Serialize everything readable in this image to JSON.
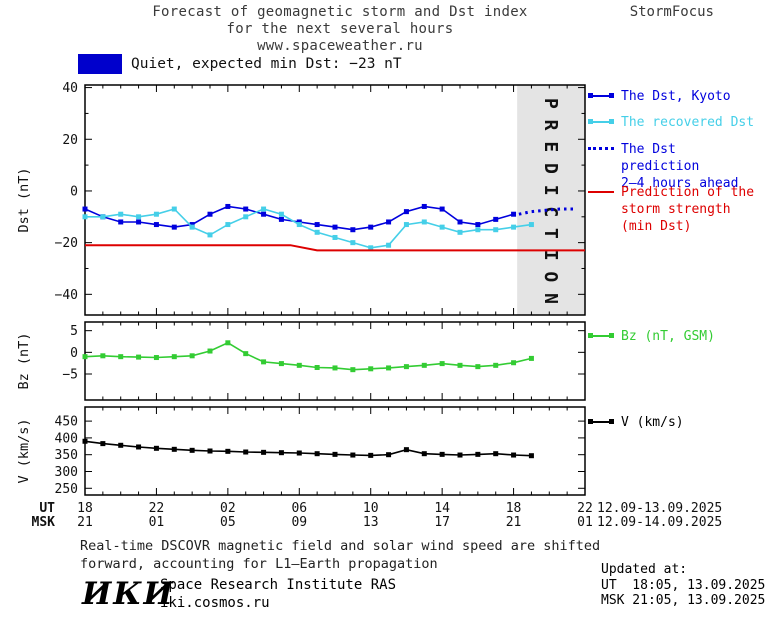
{
  "header": {
    "title_line1": "Forecast of geomagnetic storm and Dst index",
    "title_line2": "for the next several hours",
    "title_line3": "www.spaceweather.ru",
    "brand": "StormFocus"
  },
  "status": {
    "label": "Quiet, expected min Dst: −23 nT"
  },
  "colors": {
    "dst": "#0000dd",
    "recovered": "#45cfe8",
    "prediction": "#0000dd",
    "min_dst": "#dd0000",
    "bz": "#33cc33",
    "v": "#000000",
    "band": "#e4e4e4",
    "band_text": "#b4b4b4",
    "swatch": "#0000cc"
  },
  "legend": {
    "dst_kyoto": "The Dst, Kyoto",
    "recovered": "The recovered Dst",
    "prediction_line1": "The Dst prediction",
    "prediction_line2": "2–4 hours ahead",
    "min_dst_line1": "Prediction of the",
    "min_dst_line2": "storm strength",
    "min_dst_line3": "(min Dst)",
    "bz": "Bz (nT, GSM)",
    "v": "V (km/s)"
  },
  "axis": {
    "ut_label": "UT",
    "msk_label": "MSK",
    "ut_ticks": [
      "18",
      "22",
      "02",
      "06",
      "10",
      "14",
      "18",
      "22"
    ],
    "msk_ticks": [
      "21",
      "01",
      "05",
      "09",
      "13",
      "17",
      "21",
      "01"
    ],
    "ut_dates": "12.09-13.09.2025",
    "msk_dates": "12.09-14.09.2025"
  },
  "footnote": {
    "line1": "Real-time DSCOVR magnetic field and solar wind speed are shifted",
    "line2": "forward, accounting for L1–Earth propagation"
  },
  "footer": {
    "logo": "ИКИ",
    "institute": "Space Research Institute RAS",
    "site": "iki.cosmos.ru",
    "updated_label": "Updated at:",
    "updated_ut": "UT  18:05, 13.09.2025",
    "updated_msk": "MSK 21:05, 13.09.2025"
  },
  "chart_data": [
    {
      "type": "line",
      "ylabel": "Dst (nT)",
      "ylim": [
        -48,
        41
      ],
      "yticks": [
        40,
        20,
        0,
        -20,
        -40
      ],
      "yminor": [
        30,
        10,
        -10,
        -30
      ],
      "xlim": [
        0,
        28
      ],
      "xtick_step": 4,
      "x_note": "hours since 18:00 UT 12.09.2025",
      "band": {
        "start": 24.2,
        "label": "P R E D I C T I O N"
      },
      "series": [
        {
          "name": "The Dst, Kyoto",
          "color": "#0000dd",
          "marker": "square",
          "x": [
            0,
            1,
            2,
            3,
            4,
            5,
            6,
            7,
            8,
            9,
            10,
            11,
            12,
            13,
            14,
            15,
            16,
            17,
            18,
            19,
            20,
            21,
            22,
            23,
            24
          ],
          "y": [
            -7,
            -10,
            -12,
            -12,
            -13,
            -14,
            -13,
            -9,
            -6,
            -7,
            -9,
            -11,
            -12,
            -13,
            -14,
            -15,
            -14,
            -12,
            -8,
            -6,
            -7,
            -12,
            -13,
            -11,
            -9
          ]
        },
        {
          "name": "The recovered Dst",
          "color": "#45cfe8",
          "marker": "square",
          "x": [
            0,
            1,
            2,
            3,
            4,
            5,
            6,
            7,
            8,
            9,
            10,
            11,
            12,
            13,
            14,
            15,
            16,
            17,
            18,
            19,
            20,
            21,
            22,
            23,
            24,
            25
          ],
          "y": [
            -10,
            -10,
            -9,
            -10,
            -9,
            -7,
            -14,
            -17,
            -13,
            -10,
            -7,
            -9,
            -13,
            -16,
            -18,
            -20,
            -22,
            -21,
            -13,
            -12,
            -14,
            -16,
            -15,
            -15,
            -14,
            -13
          ]
        },
        {
          "name": "The Dst prediction 2–4 hours ahead",
          "color": "#0000dd",
          "style": "dotted",
          "x": [
            24.3,
            25.0,
            25.8,
            26.6,
            27.4
          ],
          "y": [
            -9,
            -8,
            -7.5,
            -7,
            -7
          ]
        },
        {
          "name": "Prediction of the storm strength (min Dst)",
          "color": "#dd0000",
          "width": 2,
          "x": [
            0,
            11.5,
            13,
            28
          ],
          "y": [
            -21,
            -21,
            -23,
            -23
          ]
        }
      ]
    },
    {
      "type": "line",
      "ylabel": "Bz (nT)",
      "ylim": [
        -11,
        7
      ],
      "yticks": [
        5,
        0,
        -5
      ],
      "xlim": [
        0,
        28
      ],
      "xtick_step": 4,
      "series": [
        {
          "name": "Bz (nT, GSM)",
          "color": "#33cc33",
          "marker": "square",
          "x": [
            0,
            1,
            2,
            3,
            4,
            5,
            6,
            7,
            8,
            9,
            10,
            11,
            12,
            13,
            14,
            15,
            16,
            17,
            18,
            19,
            20,
            21,
            22,
            23,
            24,
            25
          ],
          "y": [
            -1,
            -0.8,
            -1,
            -1.1,
            -1.2,
            -1,
            -0.8,
            0.3,
            2.2,
            -0.3,
            -2.2,
            -2.6,
            -3,
            -3.5,
            -3.6,
            -4,
            -3.8,
            -3.6,
            -3.3,
            -3,
            -2.6,
            -3,
            -3.3,
            -3,
            -2.4,
            -1.4
          ]
        }
      ]
    },
    {
      "type": "line",
      "ylabel": "V (km/s)",
      "ylim": [
        230,
        492
      ],
      "yticks": [
        450,
        400,
        350,
        300,
        250
      ],
      "xlim": [
        0,
        28
      ],
      "xtick_step": 4,
      "series": [
        {
          "name": "V (km/s)",
          "color": "#000000",
          "marker": "square",
          "x": [
            0,
            1,
            2,
            3,
            4,
            5,
            6,
            7,
            8,
            9,
            10,
            11,
            12,
            13,
            14,
            15,
            16,
            17,
            18,
            19,
            20,
            21,
            22,
            23,
            24,
            25
          ],
          "y": [
            390,
            383,
            378,
            373,
            369,
            366,
            363,
            361,
            360,
            358,
            357,
            356,
            355,
            353,
            351,
            349,
            348,
            350,
            365,
            353,
            351,
            349,
            351,
            353,
            349,
            347
          ]
        }
      ]
    }
  ]
}
